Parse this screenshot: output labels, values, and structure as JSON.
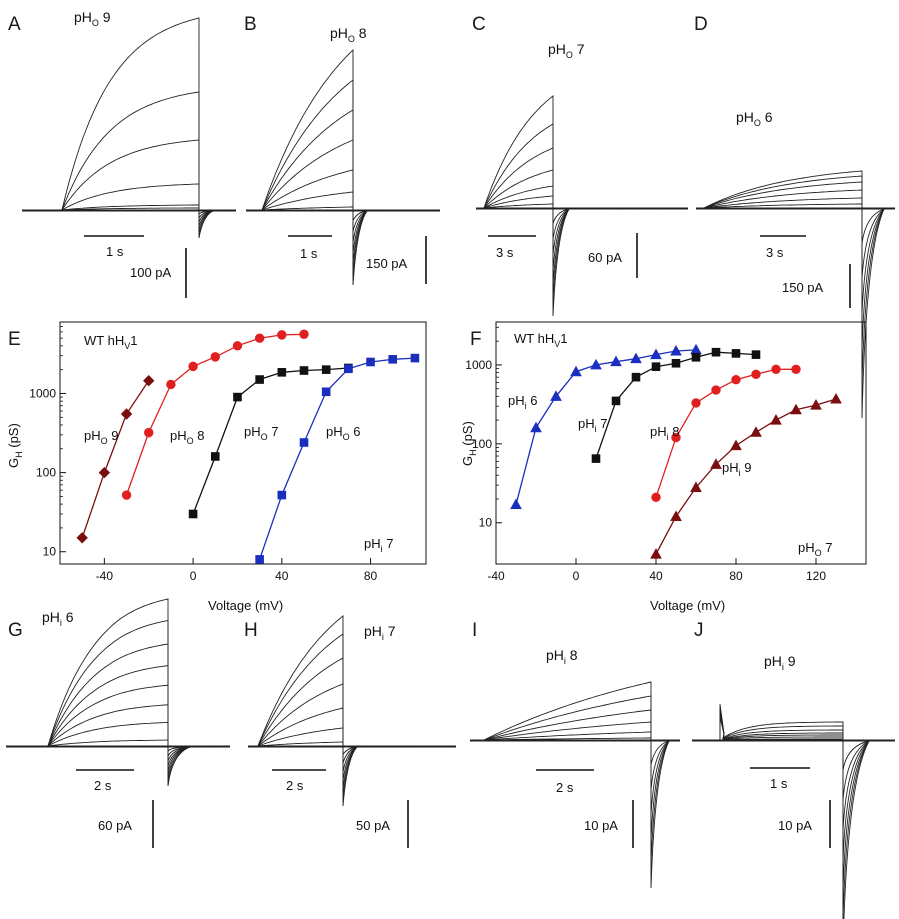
{
  "colors": {
    "ph6": "#1b2fbf",
    "ph7": "#111111",
    "ph8": "#e02020",
    "ph9": "#7a0e0e",
    "trace": "#222222"
  },
  "panel_letters": [
    "A",
    "B",
    "C",
    "D",
    "E",
    "F",
    "G",
    "H",
    "I",
    "J"
  ],
  "traces": [
    {
      "panel": "A",
      "ph_main": "pH",
      "ph_sub": "O",
      "ph_val": " 9",
      "ph_color": "ph9",
      "time_label": "1 s",
      "amp_label": "100 pA"
    },
    {
      "panel": "B",
      "ph_main": "pH",
      "ph_sub": "O",
      "ph_val": " 8",
      "ph_color": "ph8",
      "time_label": "1 s",
      "amp_label": "150 pA"
    },
    {
      "panel": "C",
      "ph_main": "pH",
      "ph_sub": "O",
      "ph_val": " 7",
      "ph_color": "ph7",
      "time_label": "3 s",
      "amp_label": "60 pA"
    },
    {
      "panel": "D",
      "ph_main": "pH",
      "ph_sub": "O",
      "ph_val": " 6",
      "ph_color": "ph6",
      "time_label": "3 s",
      "amp_label": "150 pA"
    },
    {
      "panel": "G",
      "ph_main": "pH",
      "ph_sub": "i",
      "ph_val": " 6",
      "ph_color": "ph6",
      "time_label": "2 s",
      "amp_label": "60 pA"
    },
    {
      "panel": "H",
      "ph_main": "pH",
      "ph_sub": "i",
      "ph_val": " 7",
      "ph_color": "ph7",
      "time_label": "2 s",
      "amp_label": "50 pA"
    },
    {
      "panel": "I",
      "ph_main": "pH",
      "ph_sub": "i",
      "ph_val": " 8",
      "ph_color": "ph8",
      "time_label": "2 s",
      "amp_label": "10 pA"
    },
    {
      "panel": "J",
      "ph_main": "pH",
      "ph_sub": "i",
      "ph_val": " 9",
      "ph_color": "ph9",
      "time_label": "1 s",
      "amp_label": "10 pA"
    }
  ],
  "chart_data": [
    {
      "panel": "E",
      "type": "scatter",
      "xlabel": "Voltage (mV)",
      "ylabel_main": "G",
      "ylabel_sub": "H",
      "ylabel_unit": " (pS)",
      "xlim": [
        -60,
        105
      ],
      "ylim": [
        7,
        8000
      ],
      "yscale": "log",
      "xticks": [
        -40,
        0,
        40,
        80
      ],
      "yticks": [
        10,
        100,
        1000
      ],
      "grid": false,
      "header_main": "WT hH",
      "header_sub": "V",
      "header_tail": "1",
      "corner_main": "pH",
      "corner_sub": "i",
      "corner_tail": " 7",
      "series": [
        {
          "name_main": "pH",
          "name_sub": "O",
          "name_tail": " 9",
          "color": "ph9",
          "marker": "diamond",
          "x": [
            -50,
            -40,
            -30,
            -20
          ],
          "y": [
            15,
            100,
            550,
            1450
          ]
        },
        {
          "name_main": "pH",
          "name_sub": "O",
          "name_tail": " 8",
          "color": "ph8",
          "marker": "circle",
          "x": [
            -30,
            -20,
            -10,
            0,
            10,
            20,
            30,
            40,
            50
          ],
          "y": [
            52,
            320,
            1300,
            2200,
            2900,
            4000,
            5000,
            5500,
            5600
          ]
        },
        {
          "name_main": "pH",
          "name_sub": "O",
          "name_tail": " 7",
          "color": "ph7",
          "marker": "square",
          "x": [
            0,
            10,
            20,
            30,
            40,
            50,
            60,
            70
          ],
          "y": [
            30,
            160,
            900,
            1500,
            1850,
            1950,
            2000,
            2100
          ]
        },
        {
          "name_main": "pH",
          "name_sub": "O",
          "name_tail": " 6",
          "color": "ph6",
          "marker": "square",
          "x": [
            30,
            40,
            50,
            60,
            70,
            80,
            90,
            100
          ],
          "y": [
            8,
            52,
            240,
            1050,
            2050,
            2500,
            2700,
            2800
          ]
        }
      ]
    },
    {
      "panel": "F",
      "type": "scatter",
      "xlabel": "Voltage (mV)",
      "ylabel_main": "G",
      "ylabel_sub": "H",
      "ylabel_unit": " (pS)",
      "xlim": [
        -40,
        145
      ],
      "ylim": [
        3,
        3500
      ],
      "yscale": "log",
      "xticks": [
        -40,
        0,
        40,
        80,
        120
      ],
      "yticks": [
        10,
        100,
        1000
      ],
      "grid": false,
      "header_main": "WT hH",
      "header_sub": "V",
      "header_tail": "1",
      "corner_main": "pH",
      "corner_sub": "O",
      "corner_tail": " 7",
      "series": [
        {
          "name_main": "pH",
          "name_sub": "i",
          "name_tail": " 6",
          "color": "ph6",
          "marker": "triangle",
          "x": [
            -30,
            -20,
            -10,
            0,
            10,
            20,
            30,
            40,
            50,
            60
          ],
          "y": [
            17,
            160,
            400,
            820,
            1000,
            1100,
            1200,
            1350,
            1500,
            1550
          ]
        },
        {
          "name_main": "pH",
          "name_sub": "i",
          "name_tail": " 7",
          "color": "ph7",
          "marker": "square",
          "x": [
            10,
            20,
            30,
            40,
            50,
            60,
            70,
            80,
            90
          ],
          "y": [
            65,
            350,
            700,
            950,
            1050,
            1250,
            1450,
            1400,
            1350
          ]
        },
        {
          "name_main": "pH",
          "name_sub": "i",
          "name_tail": " 8",
          "color": "ph8",
          "marker": "circle",
          "x": [
            40,
            50,
            60,
            70,
            80,
            90,
            100,
            110
          ],
          "y": [
            21,
            120,
            330,
            480,
            650,
            760,
            880,
            880
          ]
        },
        {
          "name_main": "pH",
          "name_sub": "i",
          "name_tail": " 9",
          "color": "ph9",
          "marker": "triangle",
          "x": [
            40,
            50,
            60,
            70,
            80,
            90,
            100,
            110,
            120,
            130
          ],
          "y": [
            4,
            12,
            28,
            55,
            95,
            140,
            200,
            270,
            310,
            370
          ]
        }
      ]
    }
  ]
}
